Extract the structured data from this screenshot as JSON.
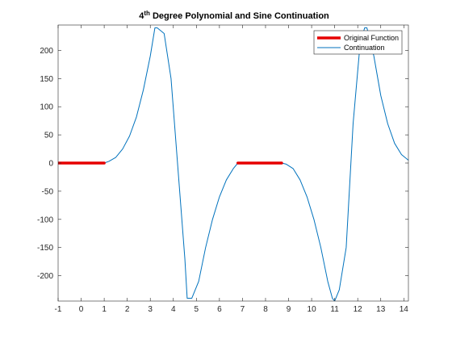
{
  "chart_data": {
    "type": "line",
    "title_prefix": "4",
    "title_sup": "th",
    "title_rest": " Degree Polynomial and Sine Continuation",
    "xlabel": "",
    "ylabel": "",
    "xlim": [
      -1,
      14.2
    ],
    "ylim": [
      -245,
      245
    ],
    "xticks": [
      -1,
      0,
      1,
      2,
      3,
      4,
      5,
      6,
      7,
      8,
      9,
      10,
      11,
      12,
      13,
      14
    ],
    "yticks": [
      -200,
      -150,
      -100,
      -50,
      0,
      50,
      100,
      150,
      200
    ],
    "grid": false,
    "legend_position": "top-right",
    "series": [
      {
        "name": "Original Function",
        "color": "#e60000",
        "segments": [
          {
            "x": [
              -1,
              0,
              0.5,
              1
            ],
            "y": [
              0,
              0,
              0,
              0
            ]
          },
          {
            "x": [
              6.8,
              7.7,
              8.7
            ],
            "y": [
              0,
              0,
              0
            ]
          }
        ]
      },
      {
        "name": "Continuation",
        "color": "#0072bd",
        "x": [
          -1,
          0,
          1,
          1.2,
          1.5,
          1.8,
          2.1,
          2.4,
          2.7,
          3.0,
          3.2,
          3.3,
          3.6,
          3.9,
          4.2,
          4.5,
          4.6,
          4.8,
          5.1,
          5.4,
          5.7,
          6.0,
          6.3,
          6.6,
          6.8,
          7.7,
          8.7,
          8.9,
          9.2,
          9.5,
          9.8,
          10.1,
          10.4,
          10.7,
          10.9,
          11.0,
          11.2,
          11.5,
          11.8,
          12.1,
          12.3,
          12.4,
          12.7,
          13.0,
          13.3,
          13.6,
          13.9,
          14.2
        ],
        "y": [
          0,
          0,
          0,
          3,
          10,
          25,
          48,
          82,
          130,
          190,
          240,
          240,
          230,
          150,
          -10,
          -170,
          -240,
          -240,
          -210,
          -150,
          -100,
          -60,
          -30,
          -10,
          0,
          0,
          0,
          -2,
          -10,
          -30,
          -60,
          -100,
          -150,
          -210,
          -240,
          -245,
          -225,
          -150,
          70,
          210,
          240,
          240,
          190,
          120,
          70,
          35,
          15,
          5
        ]
      }
    ]
  }
}
